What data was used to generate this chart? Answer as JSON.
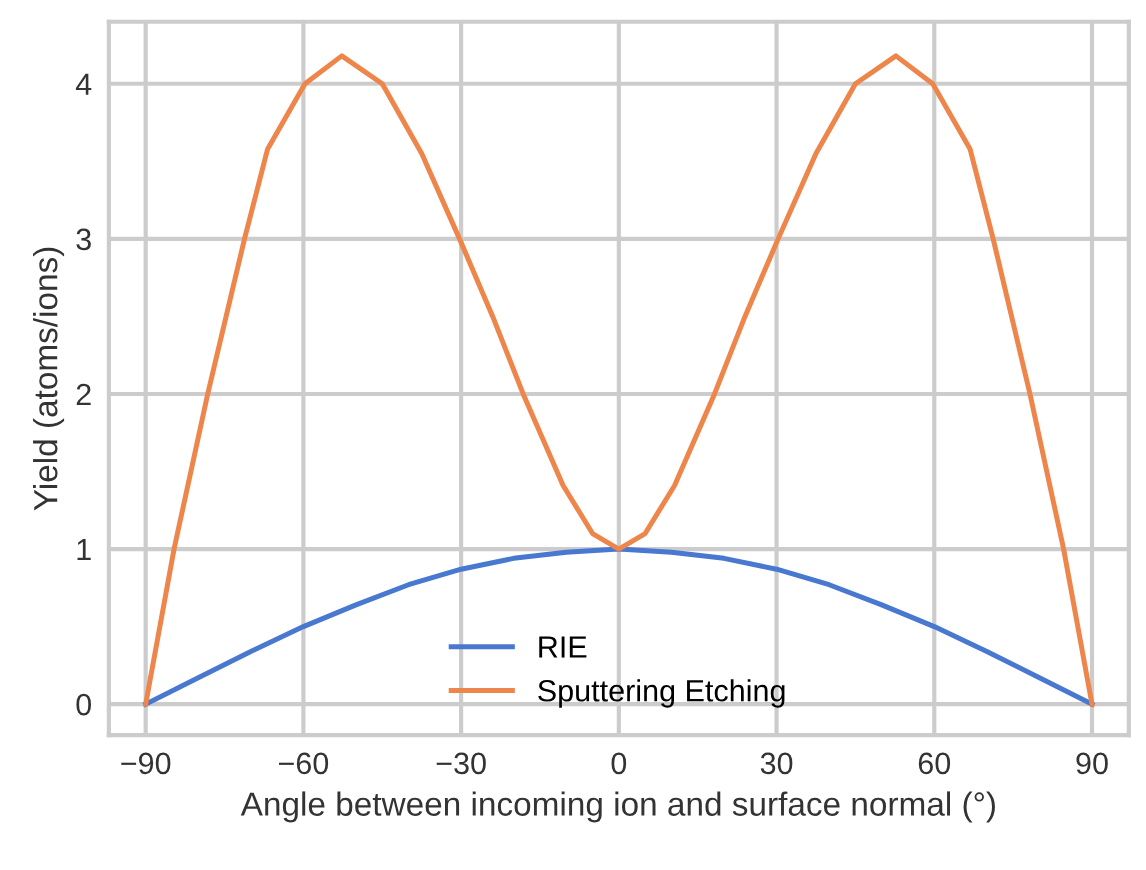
{
  "chart_data": {
    "type": "line",
    "xlabel": "Angle between incoming ion and surface normal (°)",
    "ylabel": "Yield (atoms/ions)",
    "xlim": [
      -97,
      97
    ],
    "ylim": [
      -0.2,
      4.4
    ],
    "xticks": [
      {
        "value": -90,
        "label": "−90"
      },
      {
        "value": -60,
        "label": "−60"
      },
      {
        "value": -30,
        "label": "−30"
      },
      0,
      30,
      60,
      90
    ],
    "yticks": [
      0,
      1,
      2,
      3,
      4
    ],
    "grid": true,
    "legend": "bottom",
    "marker": "none",
    "line_style": "solid",
    "series": [
      {
        "name": "RIE",
        "color": "#4878d0",
        "x": [
          -90,
          -80,
          -70,
          -60,
          -50,
          -40,
          -30,
          -20,
          -10,
          0,
          10,
          20,
          30,
          40,
          50,
          60,
          70,
          80,
          90
        ],
        "values": [
          0,
          0.17,
          0.34,
          0.5,
          0.64,
          0.77,
          0.87,
          0.94,
          0.98,
          1,
          0.98,
          0.94,
          0.87,
          0.77,
          0.64,
          0.5,
          0.34,
          0.17,
          0
        ]
      },
      {
        "name": "Sputtering Etching",
        "color": "#ee854a",
        "x": [
          -90,
          -84.6,
          -78.2,
          -71.2,
          -66.8,
          -59.7,
          -52.7,
          -45,
          -37.5,
          -30.3,
          -24,
          -18.2,
          -10.6,
          -5,
          0,
          5,
          10.6,
          18.2,
          24,
          30.3,
          37.5,
          45,
          52.7,
          59.7,
          66.8,
          71.2,
          78.2,
          84.6,
          90
        ],
        "values": [
          0,
          1.0,
          2.0,
          3.0,
          3.58,
          4.0,
          4.18,
          4.0,
          3.55,
          3.0,
          2.5,
          2.0,
          1.41,
          1.1,
          1,
          1.1,
          1.41,
          2.0,
          2.5,
          3.0,
          3.55,
          4.0,
          4.18,
          4.0,
          3.58,
          3.0,
          2.0,
          1.0,
          0
        ]
      }
    ]
  }
}
